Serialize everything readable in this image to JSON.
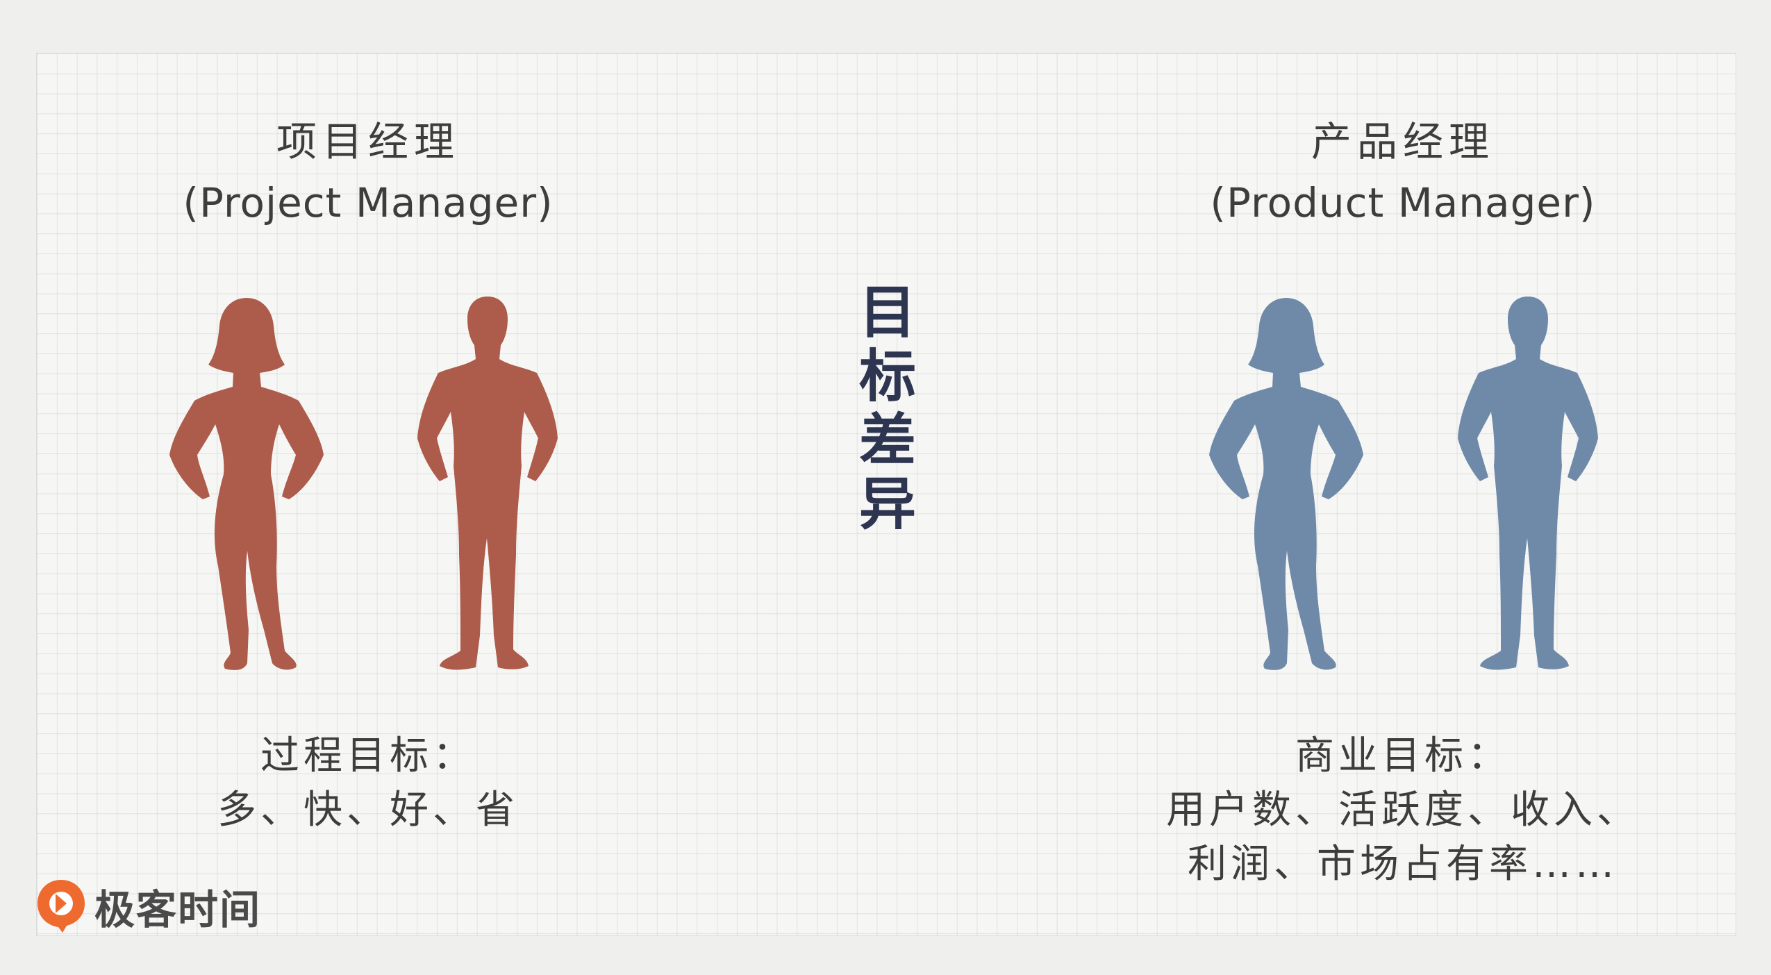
{
  "left": {
    "title": "项目经理",
    "subtitle": "(Project Manager)",
    "goal_title": "过程目标：",
    "goal_items": "多、快、好、省",
    "color": "#ad5b4a"
  },
  "center": {
    "label": "目标差异",
    "color": "#2d3550"
  },
  "right": {
    "title": "产品经理",
    "subtitle": "(Product Manager)",
    "goal_title": "商业目标：",
    "goal_line1": "用户数、活跃度、收入、",
    "goal_line2": "利润、市场占有率……",
    "color": "#6f8aa8"
  },
  "logo": {
    "text": "极客时间",
    "icon": "geektime-logo-icon",
    "color": "#ef6a2e"
  }
}
